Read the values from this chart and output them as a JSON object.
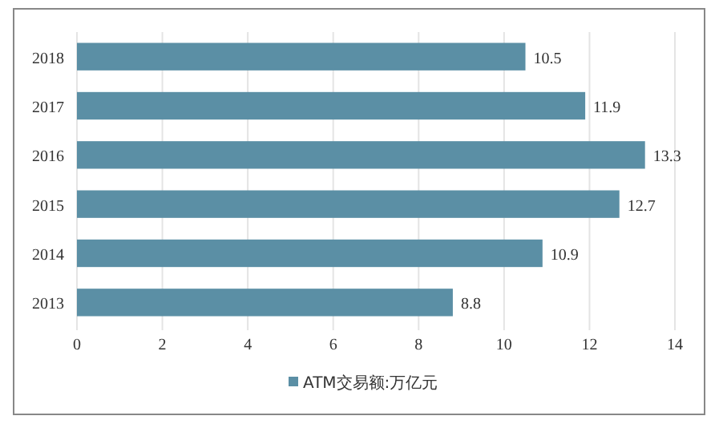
{
  "chart_data": {
    "type": "bar",
    "orientation": "horizontal",
    "categories": [
      "2018",
      "2017",
      "2016",
      "2015",
      "2014",
      "2013"
    ],
    "series": [
      {
        "name": "ATM交易额:万亿元",
        "color": "#5b8fa5",
        "values": [
          10.5,
          11.9,
          13.3,
          12.7,
          10.9,
          8.8
        ]
      }
    ],
    "xlim": [
      0,
      14
    ],
    "xticks": [
      0,
      2,
      4,
      6,
      8,
      10,
      12,
      14
    ],
    "grid": "x",
    "legend": "bottom",
    "data_labels": true
  }
}
